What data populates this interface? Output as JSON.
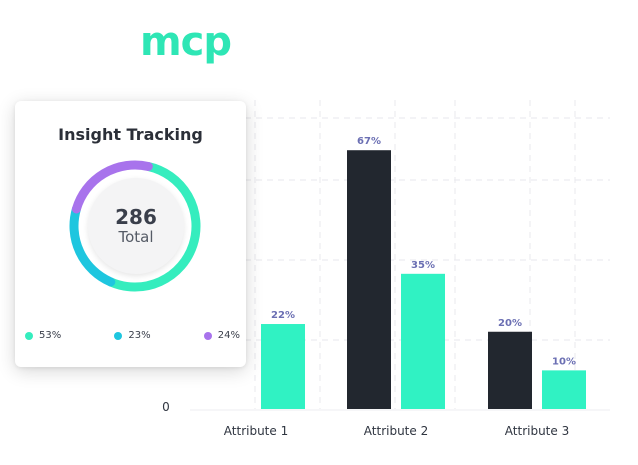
{
  "brand": {
    "logo_text": "mcp",
    "logo_color": "#2ee6b5"
  },
  "chart_data": [
    {
      "type": "bar",
      "categories": [
        "Attribute 1",
        "Attribute 2",
        "Attribute 3"
      ],
      "series": [
        {
          "values": [
            null,
            67,
            20
          ],
          "color": "#22272f"
        },
        {
          "values": [
            22,
            35,
            10
          ],
          "color": "#30f2c3"
        }
      ],
      "value_labels": [
        [
          "",
          "67%",
          "20%"
        ],
        [
          "22%",
          "35%",
          "10%"
        ]
      ],
      "y_ticks": [
        "0"
      ],
      "ylim": [
        0,
        80
      ],
      "grid": true,
      "label_color": "#6b6fb3"
    },
    {
      "type": "pie",
      "title": "Insight Tracking",
      "total_value": "286",
      "total_label": "Total",
      "slices": [
        {
          "label": "53%",
          "value": 53,
          "color": "#35edbe"
        },
        {
          "label": "23%",
          "value": 23,
          "color": "#1ec6df"
        },
        {
          "label": "24%",
          "value": 24,
          "color": "#a873ec"
        }
      ]
    }
  ]
}
